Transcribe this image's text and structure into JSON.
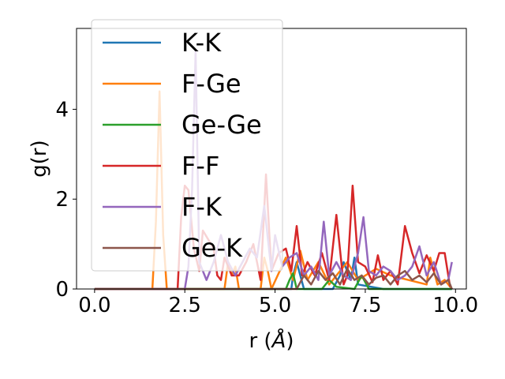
{
  "chart_data": {
    "type": "line",
    "xlabel": "r (Å)",
    "xlabel_main": "r (",
    "xlabel_unit": "Å",
    "xlabel_close": ")",
    "ylabel": "g(r)",
    "xlim": [
      -0.5,
      10.3
    ],
    "ylim": [
      0,
      5.8
    ],
    "xticks": [
      0.0,
      2.5,
      5.0,
      7.5,
      10.0
    ],
    "xtick_labels": [
      "0.0",
      "2.5",
      "5.0",
      "7.5",
      "10.0"
    ],
    "yticks": [
      0,
      2,
      4
    ],
    "ytick_labels": [
      "0",
      "2",
      "4"
    ],
    "grid": false,
    "legend_position": "top-left",
    "series": [
      {
        "name": "K-K",
        "color": "#1f77b4",
        "x": [
          0.0,
          5.45,
          5.5,
          5.6,
          5.7,
          5.8,
          6.6,
          6.8,
          6.9,
          7.1,
          7.2,
          7.3,
          8.0,
          9.9
        ],
        "y": [
          0,
          0,
          0.3,
          0.6,
          0.3,
          0,
          0,
          0.3,
          0.6,
          0.2,
          0.7,
          0.1,
          0,
          0
        ]
      },
      {
        "name": "F-Ge",
        "color": "#ff7f0e",
        "x": [
          0.0,
          1.6,
          1.7,
          1.8,
          1.9,
          2.0,
          2.2,
          3.6,
          3.7,
          3.8,
          3.9,
          4.0,
          4.6,
          4.7,
          4.8,
          4.9,
          5.3,
          5.5,
          5.7,
          5.9,
          6.2,
          6.5,
          7.0,
          7.3,
          7.8,
          8.2,
          9.2,
          9.3,
          9.5,
          9.7,
          9.9
        ],
        "y": [
          0,
          0,
          1.5,
          4.4,
          1.2,
          0,
          0,
          0,
          0.6,
          0.3,
          0.5,
          0,
          0,
          0.7,
          0.4,
          0,
          0.7,
          0.2,
          0.85,
          0.2,
          0.6,
          0.1,
          0.6,
          0.2,
          0.45,
          0.3,
          0.1,
          0.7,
          0.1,
          0.2,
          0
        ]
      },
      {
        "name": "Ge-Ge",
        "color": "#2ca02c",
        "x": [
          0.0,
          5.3,
          5.4,
          5.5,
          5.6,
          6.3,
          6.5,
          6.7,
          7.2,
          7.4,
          7.6,
          9.9
        ],
        "y": [
          0,
          0,
          0.2,
          0.35,
          0,
          0,
          0.2,
          0.05,
          0,
          0.3,
          0,
          0
        ]
      },
      {
        "name": "F-F",
        "color": "#d62728",
        "x": [
          0.0,
          2.3,
          2.4,
          2.5,
          2.6,
          2.75,
          2.9,
          3.0,
          3.3,
          3.4,
          3.5,
          3.6,
          3.8,
          4.0,
          4.2,
          4.4,
          4.6,
          4.75,
          4.9,
          5.1,
          5.3,
          5.45,
          5.6,
          5.75,
          5.9,
          6.1,
          6.3,
          6.5,
          6.7,
          6.9,
          7.0,
          7.15,
          7.3,
          7.5,
          7.7,
          7.85,
          8.0,
          8.2,
          8.4,
          8.6,
          8.8,
          9.0,
          9.2,
          9.4,
          9.55,
          9.7,
          9.85
        ],
        "y": [
          0,
          0,
          1.6,
          2.3,
          2.2,
          0.9,
          0.4,
          1.3,
          0.9,
          0.3,
          0.2,
          0.7,
          0.3,
          0.3,
          0.6,
          1.0,
          0.2,
          2.55,
          0.4,
          0.8,
          0.9,
          0.4,
          1.4,
          0.3,
          0.6,
          0.3,
          0.8,
          0.2,
          1.65,
          0.1,
          0.3,
          2.3,
          0.6,
          0.5,
          0.15,
          0.75,
          0.2,
          0.4,
          0.1,
          1.4,
          0.8,
          0.35,
          0.75,
          0.4,
          0.8,
          0.8,
          0.05
        ]
      },
      {
        "name": "F-K",
        "color": "#9467bd",
        "x": [
          0.0,
          2.5,
          2.6,
          2.7,
          2.8,
          2.9,
          3.1,
          3.3,
          3.5,
          3.7,
          3.9,
          4.1,
          4.3,
          4.5,
          4.7,
          4.9,
          5.0,
          5.2,
          5.4,
          5.6,
          5.8,
          6.0,
          6.2,
          6.35,
          6.5,
          6.7,
          6.9,
          7.1,
          7.3,
          7.45,
          7.6,
          7.8,
          8.0,
          8.2,
          8.4,
          8.6,
          8.8,
          9.0,
          9.2,
          9.4,
          9.6,
          9.8,
          9.9
        ],
        "y": [
          0,
          0,
          0.5,
          2.2,
          5.3,
          0.6,
          0.2,
          0.6,
          1.2,
          0.6,
          0.3,
          0.6,
          0.9,
          0.7,
          1.85,
          0.4,
          1.2,
          0.5,
          0.7,
          0.8,
          0.3,
          0.5,
          0.2,
          1.5,
          0.3,
          0.6,
          0.3,
          0.2,
          0.8,
          1.6,
          0.4,
          0.3,
          0.5,
          0.4,
          0.2,
          0.3,
          0.5,
          0.95,
          0.3,
          0.6,
          0.1,
          0.2,
          0.6
        ]
      },
      {
        "name": "Ge-K",
        "color": "#8c564b",
        "x": [
          0.0,
          5.6,
          5.8,
          6.0,
          6.2,
          6.4,
          6.6,
          6.8,
          7.0,
          7.2,
          7.4,
          7.6,
          7.8,
          8.0,
          8.2,
          8.4,
          8.6,
          8.8,
          9.0,
          9.2,
          9.4,
          9.6,
          9.8,
          9.9
        ],
        "y": [
          0,
          0,
          0.3,
          0.1,
          0.4,
          0.2,
          0.35,
          0.1,
          0.45,
          0.2,
          0.3,
          0.1,
          0.25,
          0.3,
          0.1,
          0.3,
          0.4,
          0.2,
          0.3,
          0.15,
          0.35,
          0.1,
          0.2,
          0
        ]
      }
    ]
  }
}
